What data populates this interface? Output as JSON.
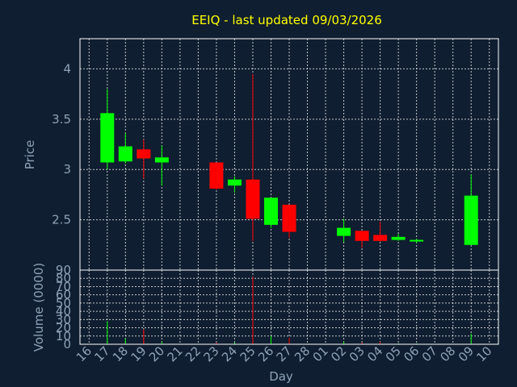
{
  "chart_data": {
    "type": "candlestick",
    "title": "EEIQ - last updated 09/03/2026",
    "up_color": "#00ff00",
    "down_color": "#ff0000",
    "background": "#0f1e30",
    "text_color": "#8ea2b8",
    "title_color": "#ffff00",
    "grid": true,
    "price_panel": {
      "ylabel": "Price",
      "ylim": [
        2.0,
        4.3
      ],
      "yticks": [
        "2.5",
        "3",
        "3.5",
        "4"
      ],
      "ytick_values": [
        2.5,
        3.0,
        3.5,
        4.0
      ]
    },
    "volume_panel": {
      "ylabel": "Volume (0000)",
      "ylim": [
        0,
        90
      ],
      "yticks": [
        "0",
        "10",
        "20",
        "30",
        "40",
        "50",
        "60",
        "70",
        "80",
        "90"
      ],
      "ytick_values": [
        0,
        10,
        20,
        30,
        40,
        50,
        60,
        70,
        80,
        90
      ]
    },
    "xlabel": "Day",
    "x_ticks": [
      "16",
      "17",
      "18",
      "19",
      "20",
      "21",
      "22",
      "23",
      "24",
      "25",
      "26",
      "27",
      "28",
      "01",
      "02",
      "03",
      "04",
      "05",
      "06",
      "07",
      "08",
      "09",
      "10"
    ],
    "candles": [
      {
        "day": "17",
        "open": 3.07,
        "high": 3.8,
        "low": 3.0,
        "close": 3.56,
        "volume": 28
      },
      {
        "day": "18",
        "open": 3.08,
        "high": 3.36,
        "low": 3.06,
        "close": 3.23,
        "volume": 7
      },
      {
        "day": "19",
        "open": 3.2,
        "high": 3.3,
        "low": 2.91,
        "close": 3.11,
        "volume": 18
      },
      {
        "day": "20",
        "open": 3.07,
        "high": 3.24,
        "low": 2.84,
        "close": 3.12,
        "volume": 3
      },
      {
        "day": "23",
        "open": 3.07,
        "high": 3.07,
        "low": 2.8,
        "close": 2.81,
        "volume": 2
      },
      {
        "day": "24",
        "open": 2.84,
        "high": 2.93,
        "low": 2.77,
        "close": 2.9,
        "volume": 2
      },
      {
        "day": "25",
        "open": 2.9,
        "high": 3.95,
        "low": 2.29,
        "close": 2.51,
        "volume": 82
      },
      {
        "day": "26",
        "open": 2.45,
        "high": 2.72,
        "low": 2.42,
        "close": 2.72,
        "volume": 10
      },
      {
        "day": "27",
        "open": 2.65,
        "high": 2.65,
        "low": 2.32,
        "close": 2.38,
        "volume": 8
      },
      {
        "day": "02",
        "open": 2.34,
        "high": 2.51,
        "low": 2.28,
        "close": 2.42,
        "volume": 3
      },
      {
        "day": "03",
        "open": 2.39,
        "high": 2.39,
        "low": 2.22,
        "close": 2.29,
        "volume": 2
      },
      {
        "day": "04",
        "open": 2.35,
        "high": 2.48,
        "low": 2.28,
        "close": 2.29,
        "volume": 3
      },
      {
        "day": "05",
        "open": 2.3,
        "high": 2.36,
        "low": 2.29,
        "close": 2.33,
        "volume": 1
      },
      {
        "day": "06",
        "open": 2.29,
        "high": 2.31,
        "low": 2.27,
        "close": 2.3,
        "volume": 1
      },
      {
        "day": "09",
        "open": 2.25,
        "high": 2.95,
        "low": 2.25,
        "close": 2.74,
        "volume": 13
      }
    ]
  }
}
